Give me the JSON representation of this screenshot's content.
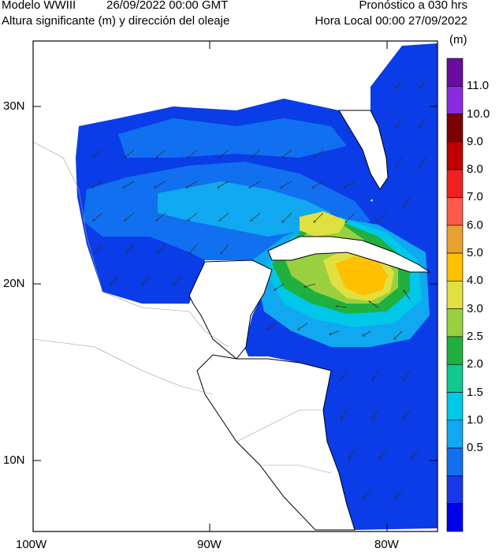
{
  "header": {
    "model": "Modelo WWIII",
    "date": "26/09/2022 00:00 GMT",
    "variable": "Altura significante (m) y dirección del oleaje",
    "forecast": "Pronóstico a 030 hrs",
    "local_time": "Hora Local 00:00 27/09/2022"
  },
  "axes": {
    "lat_labels": [
      "30N",
      "20N",
      "10N"
    ],
    "lon_labels": [
      "100W",
      "90W",
      "80W"
    ]
  },
  "colorbar": {
    "unit": "(m)",
    "levels": [
      "11.0",
      "10.0",
      "9.0",
      "8.0",
      "7.0",
      "6.0",
      "5.0",
      "4.0",
      "3.0",
      "2.5",
      "2.0",
      "1.5",
      "1.0",
      "0.5"
    ],
    "colors": [
      "#6a0d9e",
      "#8a2be2",
      "#7b0000",
      "#c00000",
      "#ee2020",
      "#ff5a4a",
      "#e8a030",
      "#ffc000",
      "#e0e040",
      "#9ad040",
      "#20b040",
      "#10c890",
      "#00c8e8",
      "#10a8f0",
      "#1070f0",
      "#1838e8",
      "#0000e8"
    ]
  }
}
